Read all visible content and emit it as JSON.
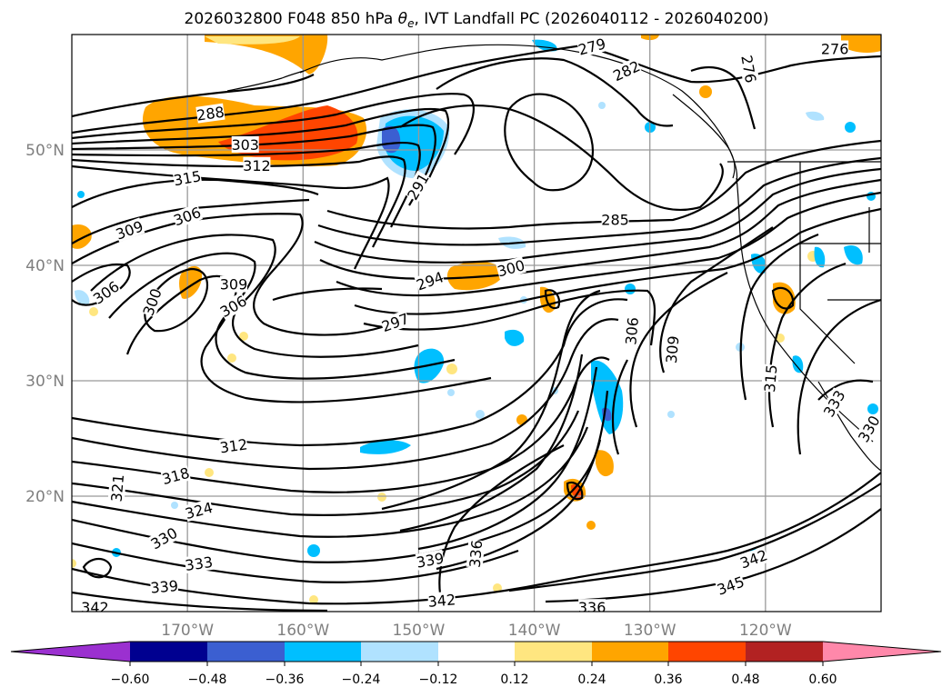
{
  "title_prefix": "2026032800 F048 850 hPa ",
  "title_symbol": "θ",
  "title_symbol_sub": "e",
  "title_suffix": ", IVT Landfall PC (2026040112 - 2026040200)",
  "map": {
    "lon_range": [
      -180,
      -110
    ],
    "lat_range": [
      10,
      60
    ],
    "lon_ticks": [
      {
        "value": -170,
        "label": "170°W"
      },
      {
        "value": -160,
        "label": "160°W"
      },
      {
        "value": -150,
        "label": "150°W"
      },
      {
        "value": -140,
        "label": "140°W"
      },
      {
        "value": -130,
        "label": "130°W"
      },
      {
        "value": -120,
        "label": "120°W"
      }
    ],
    "lat_ticks": [
      {
        "value": 20,
        "label": "20°N"
      },
      {
        "value": 30,
        "label": "30°N"
      },
      {
        "value": 40,
        "label": "40°N"
      },
      {
        "value": 50,
        "label": "50°N"
      }
    ],
    "grid": true,
    "contour_color": "#000000",
    "contour_labels": [
      {
        "lon": -168,
        "lat": 53.1,
        "text": "288",
        "rot": -8
      },
      {
        "lon": -165,
        "lat": 50.4,
        "text": "303",
        "rot": 0
      },
      {
        "lon": -164,
        "lat": 48.6,
        "text": "312",
        "rot": 0
      },
      {
        "lon": -170,
        "lat": 47.5,
        "text": "315",
        "rot": -10
      },
      {
        "lon": -175,
        "lat": 43.0,
        "text": "309",
        "rot": -20
      },
      {
        "lon": -170,
        "lat": 44.2,
        "text": "306",
        "rot": -20
      },
      {
        "lon": -177,
        "lat": 37.6,
        "text": "306",
        "rot": -35
      },
      {
        "lon": -173,
        "lat": 36.8,
        "text": "300",
        "rot": -70
      },
      {
        "lon": -166,
        "lat": 38.3,
        "text": "309",
        "rot": 0
      },
      {
        "lon": -166,
        "lat": 36.4,
        "text": "306",
        "rot": -30
      },
      {
        "lon": -152,
        "lat": 35.0,
        "text": "297",
        "rot": -20
      },
      {
        "lon": -149,
        "lat": 38.6,
        "text": "294",
        "rot": -20
      },
      {
        "lon": -142,
        "lat": 39.7,
        "text": "300",
        "rot": -15
      },
      {
        "lon": -150,
        "lat": 46.8,
        "text": "291",
        "rot": -60
      },
      {
        "lon": -133,
        "lat": 43.9,
        "text": "285",
        "rot": 0
      },
      {
        "lon": -132,
        "lat": 56.8,
        "text": "282",
        "rot": -25
      },
      {
        "lon": -135,
        "lat": 58.9,
        "text": "279",
        "rot": -15
      },
      {
        "lon": -114,
        "lat": 58.7,
        "text": "276",
        "rot": 0
      },
      {
        "lon": -121.5,
        "lat": 57.0,
        "text": "276",
        "rot": 80
      },
      {
        "lon": -131.5,
        "lat": 34.3,
        "text": "306",
        "rot": -85
      },
      {
        "lon": -128,
        "lat": 32.7,
        "text": "309",
        "rot": -85
      },
      {
        "lon": -119.5,
        "lat": 30.2,
        "text": "315",
        "rot": -85
      },
      {
        "lon": -114,
        "lat": 28.0,
        "text": "333",
        "rot": -60
      },
      {
        "lon": -111,
        "lat": 25.8,
        "text": "330",
        "rot": -60
      },
      {
        "lon": -166,
        "lat": 24.3,
        "text": "312",
        "rot": -8
      },
      {
        "lon": -171,
        "lat": 21.7,
        "text": "318",
        "rot": -15
      },
      {
        "lon": -169,
        "lat": 18.7,
        "text": "324",
        "rot": -15
      },
      {
        "lon": -176,
        "lat": 20.7,
        "text": "321",
        "rot": -85
      },
      {
        "lon": -172,
        "lat": 16.3,
        "text": "330",
        "rot": -30
      },
      {
        "lon": -169,
        "lat": 14.1,
        "text": "333",
        "rot": -8
      },
      {
        "lon": -172,
        "lat": 12.1,
        "text": "339",
        "rot": -5
      },
      {
        "lon": -178,
        "lat": 10.3,
        "text": "342",
        "rot": 0
      },
      {
        "lon": -148,
        "lat": 10.9,
        "text": "342",
        "rot": -5
      },
      {
        "lon": -149,
        "lat": 14.4,
        "text": "339",
        "rot": -10
      },
      {
        "lon": -145,
        "lat": 15.0,
        "text": "336",
        "rot": -85
      },
      {
        "lon": -135,
        "lat": 10.3,
        "text": "336",
        "rot": 0
      },
      {
        "lon": -123,
        "lat": 12.2,
        "text": "345",
        "rot": -20
      },
      {
        "lon": -121,
        "lat": 14.5,
        "text": "342",
        "rot": -20
      }
    ]
  },
  "colorbar": {
    "ticks": [
      "−0.60",
      "−0.48",
      "−0.36",
      "−0.24",
      "−0.12",
      "0.12",
      "0.24",
      "0.36",
      "0.48",
      "0.60"
    ],
    "colors": [
      "#9b30d0",
      "#000090",
      "#3b5fd1",
      "#00bfff",
      "#b0e2ff",
      "#ffffff",
      "#ffe680",
      "#ffa500",
      "#ff4500",
      "#b22222",
      "#ff88aa"
    ]
  }
}
